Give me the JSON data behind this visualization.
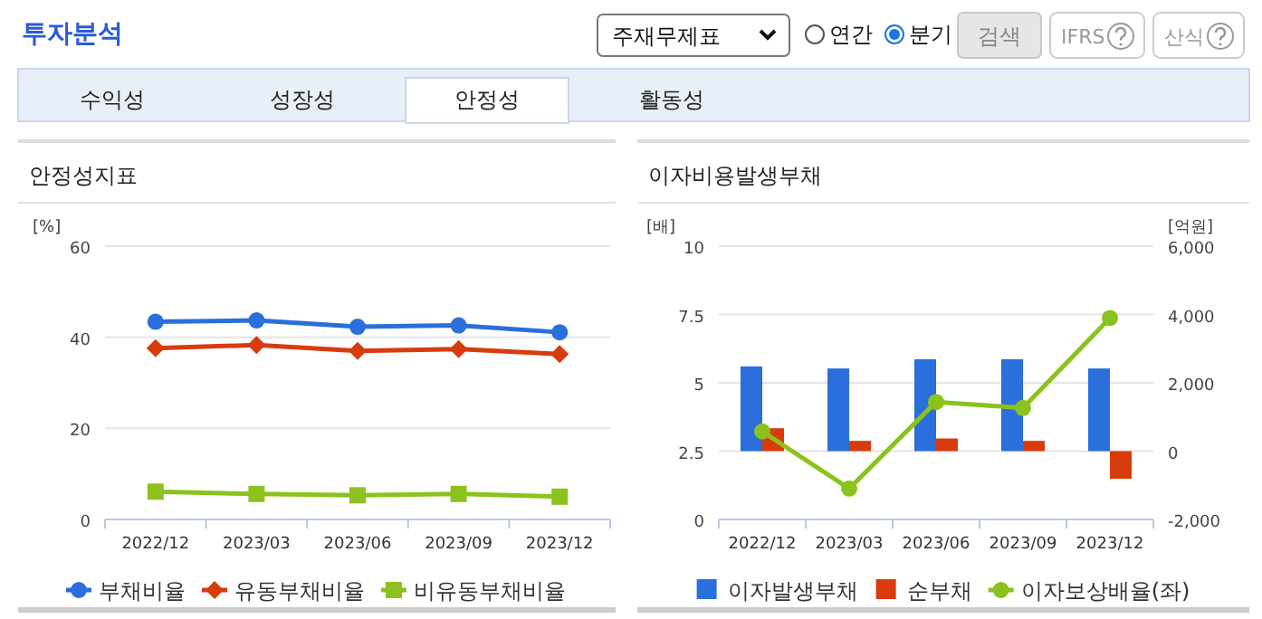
{
  "chart_data": [
    {
      "type": "other",
      "title": "투자분석",
      "annotations": [
        "주재무제표",
        "연간",
        "분기",
        "검색",
        "IFRS",
        "산식",
        "수익성",
        "성장성",
        "안정성",
        "활동성"
      ]
    },
    {
      "type": "line",
      "title": "안정성지표",
      "ylabel": "[%]",
      "categories": [
        "2022/12",
        "2023/03",
        "2023/06",
        "2023/09",
        "2023/12"
      ],
      "ylim": [
        0,
        60
      ],
      "yticks": [
        0,
        20,
        40,
        60
      ],
      "grid": "y",
      "legend": "bottom",
      "series": [
        {
          "name": "부채비율",
          "color": "#2a6fdb",
          "marker": "circle",
          "values": [
            43.4,
            43.7,
            42.3,
            42.6,
            41.1
          ]
        },
        {
          "name": "유동부채비율",
          "color": "#d83b0c",
          "marker": "diamond",
          "values": [
            37.6,
            38.3,
            37.0,
            37.4,
            36.3
          ]
        },
        {
          "name": "비유동부채비율",
          "color": "#8cc21d",
          "marker": "square",
          "values": [
            6.1,
            5.6,
            5.3,
            5.6,
            5.0
          ]
        }
      ]
    },
    {
      "type": "bar",
      "title": "이자비용발생부채",
      "ylabel": "[배]",
      "y2label": "[억원]",
      "categories": [
        "2022/12",
        "2023/03",
        "2023/06",
        "2023/09",
        "2023/12"
      ],
      "ylim": [
        0,
        10
      ],
      "yticks": [
        0,
        2.5,
        5,
        7.5,
        10
      ],
      "y2lim": [
        -2000,
        6000
      ],
      "y2ticks": [
        {
          "value": -2000,
          "label": "-2,000"
        },
        0,
        {
          "value": 2000,
          "label": "2,000"
        },
        {
          "value": 4000,
          "label": "4,000"
        },
        {
          "value": 6000,
          "label": "6,000"
        }
      ],
      "grid": "y",
      "legend": "bottom",
      "series": [
        {
          "name": "이자발생부채",
          "color": "#2a6fdb",
          "axis": "y2",
          "values": [
            2480,
            2420,
            2690,
            2690,
            2420
          ]
        },
        {
          "name": "순부채",
          "color": "#d83b0c",
          "axis": "y2",
          "values": [
            670,
            300,
            370,
            300,
            -810
          ]
        },
        {
          "name": "이자보상배율(좌)",
          "type": "line",
          "color": "#8cc21d",
          "marker": "circle",
          "axis": "y",
          "values": [
            3.22,
            1.13,
            4.3,
            4.08,
            7.37
          ]
        }
      ]
    }
  ]
}
